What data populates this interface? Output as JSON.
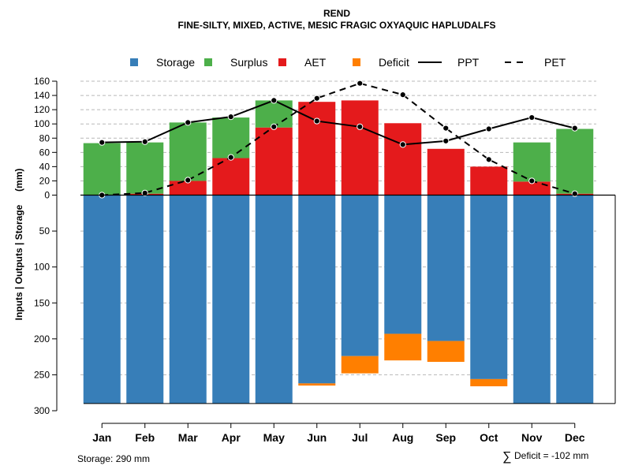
{
  "chart_data": {
    "type": "bar",
    "title": "REND",
    "subtitle": "FINE-SILTY, MIXED, ACTIVE, MESIC FRAGIC OXYAQUIC HAPLUDALFS",
    "ylabel": "Inputs | Outputs | Storage     (mm)",
    "categories": [
      "Jan",
      "Feb",
      "Mar",
      "Apr",
      "May",
      "Jun",
      "Jul",
      "Aug",
      "Sep",
      "Oct",
      "Nov",
      "Dec"
    ],
    "upper_ticks": [
      "160",
      "140",
      "120",
      "100",
      "80",
      "60",
      "40",
      "20",
      "0"
    ],
    "lower_ticks": [
      "50",
      "100",
      "150",
      "200",
      "250",
      "300"
    ],
    "ylim_upper": [
      0,
      160
    ],
    "ylim_lower": [
      0,
      300
    ],
    "legend": [
      {
        "label": "Storage",
        "color": "#377EB8",
        "kind": "box"
      },
      {
        "label": "Surplus",
        "color": "#4DAF4A",
        "kind": "box"
      },
      {
        "label": "AET",
        "color": "#E41A1C",
        "kind": "box"
      },
      {
        "label": "Deficit",
        "color": "#FF7F00",
        "kind": "box"
      },
      {
        "label": "PPT",
        "color": "#000000",
        "kind": "solid"
      },
      {
        "label": "PET",
        "color": "#000000",
        "kind": "dashed"
      }
    ],
    "series": [
      {
        "name": "AET",
        "color": "#E41A1C",
        "values": [
          0,
          2,
          20,
          52,
          95,
          131,
          133,
          101,
          65,
          40,
          19,
          2
        ]
      },
      {
        "name": "Surplus",
        "color": "#4DAF4A",
        "values": [
          73,
          72,
          82,
          57,
          38,
          0,
          0,
          0,
          0,
          0,
          55,
          91
        ]
      },
      {
        "name": "Storage",
        "color": "#377EB8",
        "values": [
          290,
          290,
          290,
          290,
          290,
          262,
          224,
          193,
          203,
          256,
          290,
          290
        ]
      },
      {
        "name": "Deficit",
        "color": "#FF7F00",
        "values": [
          0,
          0,
          0,
          0,
          0,
          3,
          24,
          37,
          29,
          10,
          0,
          0
        ]
      },
      {
        "name": "PPT",
        "color": "#000000",
        "values": [
          74,
          75,
          102,
          110,
          133,
          104,
          96,
          71,
          76,
          93,
          109,
          94
        ]
      },
      {
        "name": "PET",
        "color": "#000000",
        "values": [
          0,
          3,
          21,
          53,
          96,
          136,
          157,
          141,
          94,
          50,
          20,
          2
        ]
      }
    ],
    "storage_capacity": 290,
    "grid": true
  },
  "footer": {
    "storage_label": "Storage: 290 mm",
    "deficit_symbol": "∑",
    "deficit_label": "Deficit = -102 mm"
  }
}
